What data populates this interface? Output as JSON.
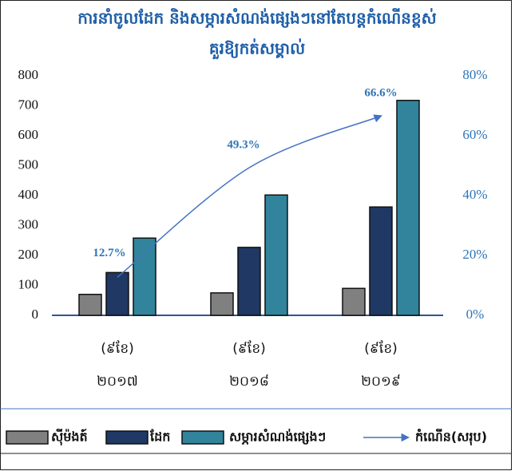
{
  "chart_data": {
    "type": "bar",
    "title": [
      "ការនាំចូលដែក និងសម្ភារសំណង់ផ្សេងៗនៅតែបន្តកំណើនខ្ពស់",
      "គួរឱ្យកត់សម្គាល់"
    ],
    "categories": [
      [
        "(៩ខែ)",
        "២០១៧"
      ],
      [
        "(៩ខែ)",
        "២០១៨"
      ],
      [
        "(៩ខែ)",
        "២០១៩"
      ]
    ],
    "series": [
      {
        "name": "ស៊ីម៉ងត៍",
        "color": "#808080",
        "values": [
          70,
          75,
          90
        ]
      },
      {
        "name": "ដែក",
        "color": "#1f3864",
        "values": [
          143,
          227,
          362
        ]
      },
      {
        "name": "សម្ភារសំណង់ផ្សេងៗ",
        "color": "#31849b",
        "values": [
          258,
          402,
          718
        ]
      },
      {
        "name": "កំណើន(សរុប)",
        "color": "#4472c4",
        "type": "line",
        "axis": "y2",
        "values": [
          12.7,
          49.3,
          66.6
        ],
        "value_labels": [
          "12.7%",
          "49.3%",
          "66.6%"
        ]
      }
    ],
    "ylim": [
      0,
      800
    ],
    "yticks": [
      0,
      100,
      200,
      300,
      400,
      500,
      600,
      700,
      800
    ],
    "y2lim": [
      0,
      80
    ],
    "y2ticks": [
      {
        "value": 0,
        "label": "0%"
      },
      {
        "value": 20,
        "label": "20%"
      },
      {
        "value": 40,
        "label": "40%"
      },
      {
        "value": 60,
        "label": "60%"
      },
      {
        "value": 80,
        "label": "80%"
      }
    ],
    "legend": "bottom"
  }
}
